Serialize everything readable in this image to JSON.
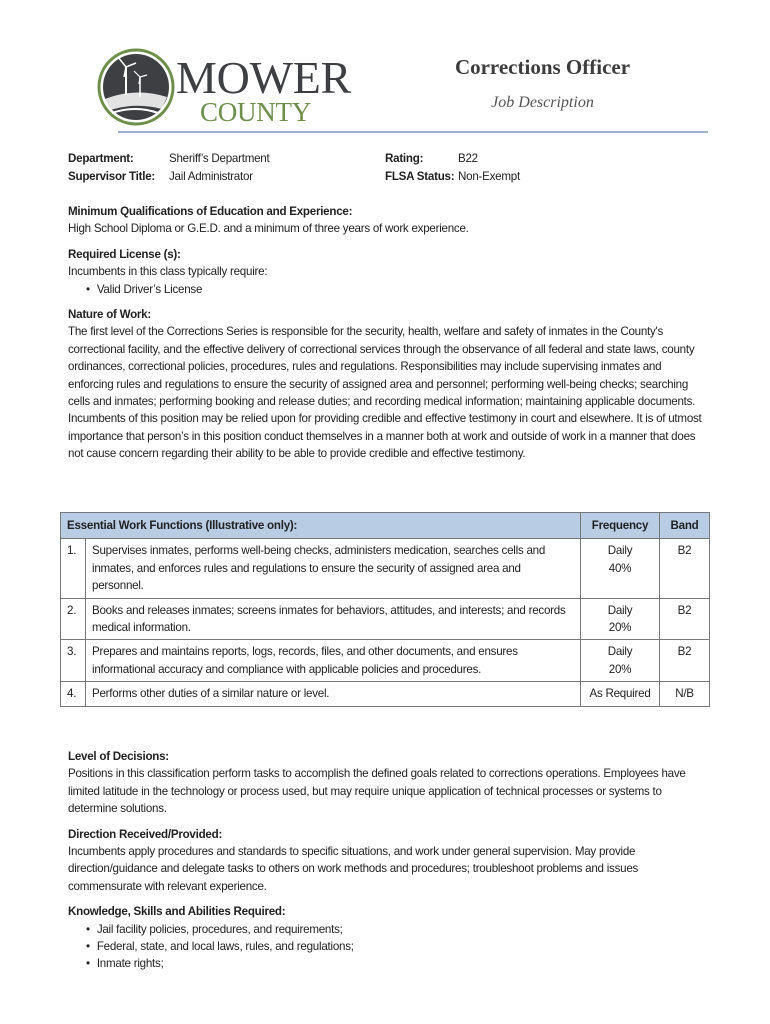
{
  "logo": {
    "line1": "MOWER",
    "line2": "COUNTY",
    "colors": {
      "dark": "#3d3f42",
      "green": "#6e8f4a"
    }
  },
  "header": {
    "title": "Corrections Officer",
    "subtitle": "Job Description"
  },
  "meta": {
    "department_label": "Department:",
    "department": "Sheriff’s Department",
    "supervisor_label": "Supervisor Title:",
    "supervisor": "Jail Administrator",
    "rating_label": "Rating:",
    "rating": "B22",
    "flsa_label": "FLSA Status:",
    "flsa": "Non-Exempt"
  },
  "qualifications": {
    "heading": "Minimum Qualifications of Education and Experience:",
    "text": "High School Diploma or G.E.D. and a minimum of three years of work experience."
  },
  "license": {
    "heading": "Required License (s):",
    "text": "Incumbents in this class typically require:",
    "items": [
      "Valid Driver’s License"
    ]
  },
  "nature": {
    "heading": "Nature of Work:",
    "text": "The first level of the Corrections Series is responsible for the security, health, welfare and safety of inmates in the County's correctional facility, and the effective delivery of correctional services through the observance of all federal and state laws, county ordinances, correctional policies, procedures, rules and regulations. Responsibilities may include supervising inmates and enforcing rules and regulations to ensure the security of assigned area and personnel; performing well-being checks; searching cells and inmates; performing booking and release duties; and recording medical information; maintaining applicable documents. Incumbents of this position may be relied upon for providing credible and effective testimony in court and elsewhere. It is of utmost importance that person’s in this position conduct themselves in a manner both at work and outside of work in a manner that does not cause concern regarding their ability to be able to provide credible and effective testimony."
  },
  "table": {
    "headers": [
      "Essential Work Functions (Illustrative only):",
      "Frequency",
      "Band"
    ],
    "rows": [
      {
        "num": "1.",
        "text": "Supervises inmates, performs well-being checks, administers medication, searches cells and inmates, and enforces rules and regulations to ensure the security of assigned area and personnel.",
        "freq": "Daily",
        "pct": "40%",
        "band": "B2"
      },
      {
        "num": "2.",
        "text": "Books and releases inmates; screens inmates for behaviors, attitudes, and interests; and records medical information.",
        "freq": "Daily",
        "pct": "20%",
        "band": "B2"
      },
      {
        "num": "3.",
        "text": "Prepares and maintains reports, logs, records, files, and other documents, and ensures informational accuracy and compliance with applicable policies and procedures.",
        "freq": "Daily",
        "pct": "20%",
        "band": "B2"
      },
      {
        "num": "4.",
        "text": "Performs other duties of a similar nature or level.",
        "freq": "As Required",
        "pct": "",
        "band": "N/B"
      }
    ]
  },
  "decisions": {
    "heading": "Level of Decisions:",
    "text": "Positions in this classification perform tasks to accomplish the defined goals related to corrections operations. Employees have limited latitude in the technology or process used, but may require unique application of technical processes or systems to determine solutions."
  },
  "direction": {
    "heading": "Direction Received/Provided:",
    "text": "Incumbents apply procedures and standards to specific situations, and work under general supervision. May provide direction/guidance and delegate tasks to others on work methods and procedures; troubleshoot problems and issues commensurate with relevant experience."
  },
  "ksa": {
    "heading": "Knowledge, Skills and Abilities Required:",
    "items": [
      "Jail facility policies, procedures, and requirements;",
      "Federal, state, and local laws, rules, and regulations;",
      "Inmate rights;"
    ]
  }
}
